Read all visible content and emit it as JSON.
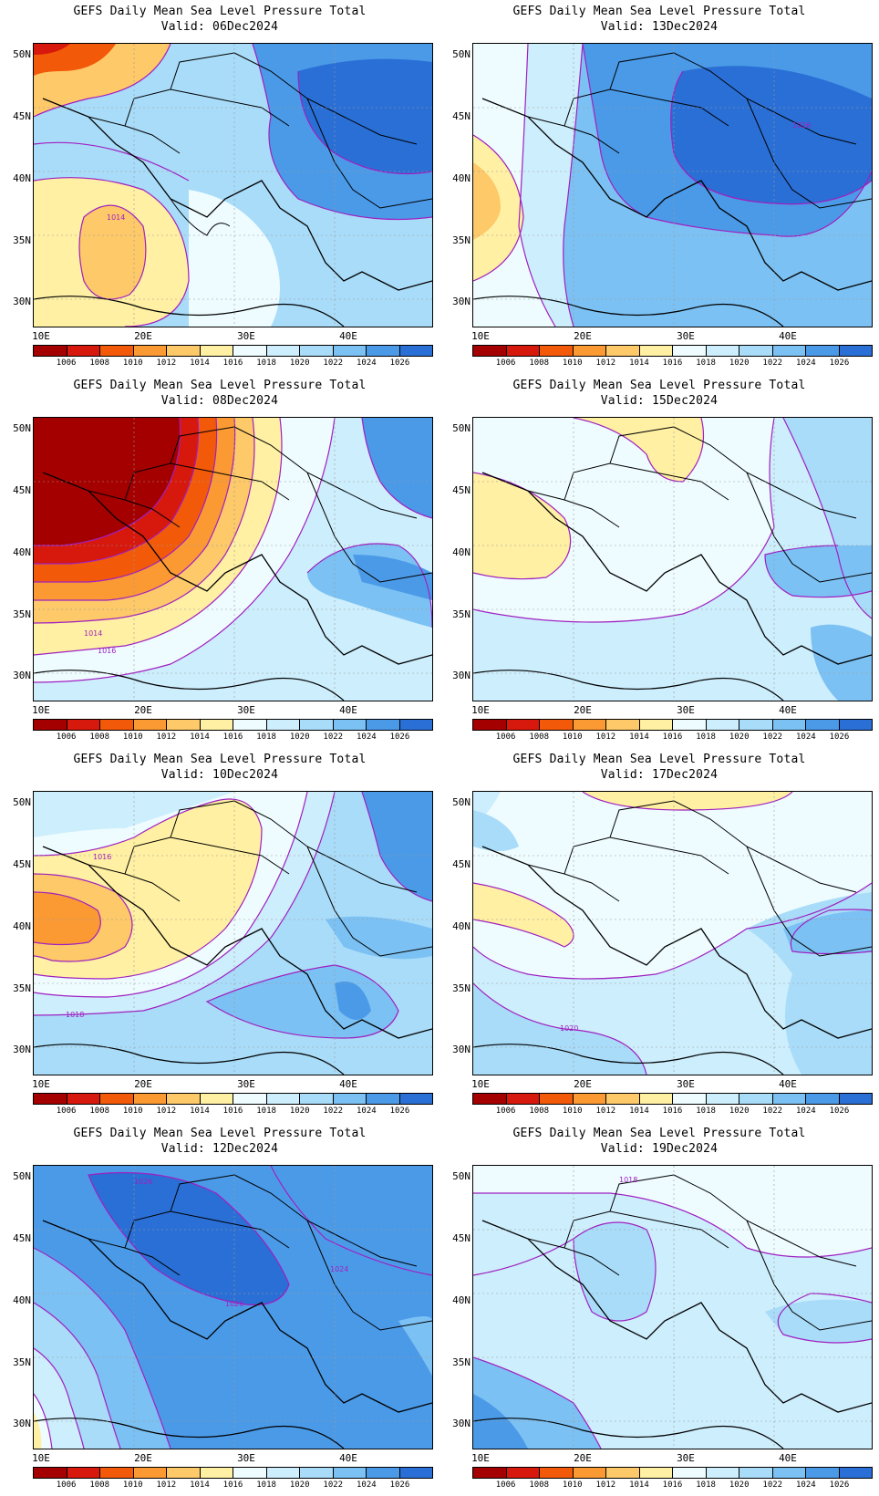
{
  "title": "GEFS Daily Mean Sea Level Pressure Total",
  "valid_prefix": "Valid:",
  "lat_labels": [
    "50N",
    "45N",
    "40N",
    "35N",
    "30N"
  ],
  "lon_labels": [
    "10E",
    "20E",
    "30E",
    "40E"
  ],
  "colorbar": {
    "labels": [
      "1006",
      "1008",
      "1010",
      "1012",
      "1014",
      "1016",
      "1018",
      "1020",
      "1022",
      "1024",
      "1026"
    ],
    "colors": [
      "#a50000",
      "#d7180c",
      "#f25a0a",
      "#fb9a33",
      "#fdc969",
      "#fff0a3",
      "#eefcff",
      "#cdeefd",
      "#a9dcf9",
      "#7cc1f3",
      "#4b9ae8",
      "#2a6fd6"
    ]
  },
  "contour_color": "#a020c0",
  "coast_color": "#000000",
  "panels": [
    {
      "valid": "Valid: 06Dec2024",
      "labels": [
        {
          "text": "1014"
        }
      ]
    },
    {
      "valid": "Valid: 13Dec2024",
      "labels": [
        {
          "text": "1026"
        }
      ]
    },
    {
      "valid": "Valid: 08Dec2024",
      "labels": [
        {
          "text": "1014"
        },
        {
          "text": "1016"
        }
      ]
    },
    {
      "valid": "Valid: 15Dec2024",
      "labels": []
    },
    {
      "valid": "Valid: 10Dec2024",
      "labels": [
        {
          "text": "1016"
        },
        {
          "text": "1018"
        }
      ]
    },
    {
      "valid": "Valid: 17Dec2024",
      "labels": [
        {
          "text": "1020"
        }
      ]
    },
    {
      "valid": "Valid: 12Dec2024",
      "labels": [
        {
          "text": "1026"
        },
        {
          "text": "1024"
        },
        {
          "text": "1026"
        }
      ]
    },
    {
      "valid": "Valid: 19Dec2024",
      "labels": [
        {
          "text": "1018"
        }
      ]
    }
  ]
}
